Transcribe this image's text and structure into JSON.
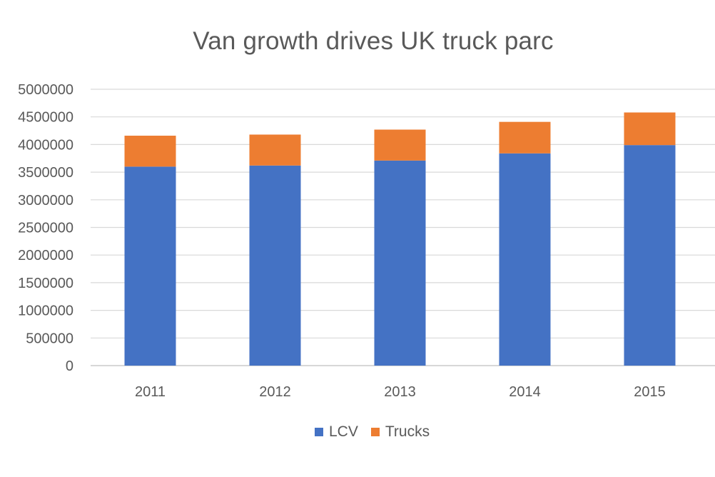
{
  "chart_data": {
    "type": "bar",
    "stacked": true,
    "title": "Van growth drives UK truck parc",
    "xlabel": "",
    "ylabel": "",
    "categories": [
      "2011",
      "2012",
      "2013",
      "2014",
      "2015"
    ],
    "series": [
      {
        "name": "LCV",
        "color": "#4472C4",
        "values": [
          3600000,
          3620000,
          3710000,
          3840000,
          3990000
        ]
      },
      {
        "name": "Trucks",
        "color": "#ED7D31",
        "values": [
          560000,
          560000,
          560000,
          570000,
          590000
        ]
      }
    ],
    "ylim": [
      0,
      5000000
    ],
    "yticks": [
      "0",
      "500000",
      "1000000",
      "1500000",
      "2000000",
      "2500000",
      "3000000",
      "3500000",
      "4000000",
      "4500000",
      "5000000"
    ],
    "grid": true,
    "legend_position": "bottom"
  }
}
